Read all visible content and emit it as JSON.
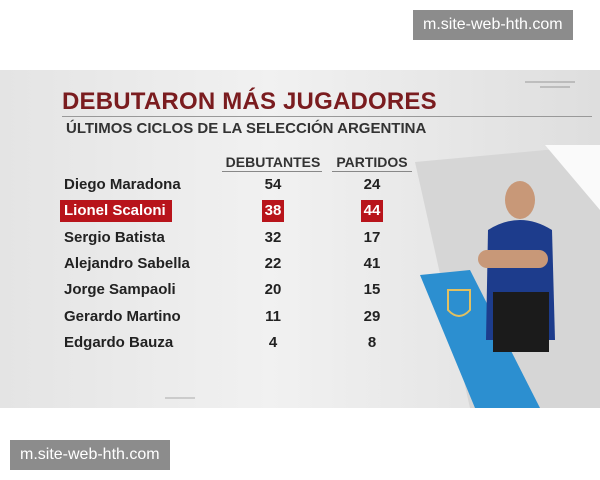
{
  "watermarks": [
    "m.site-web-hth.com",
    "m.site-web-hth.com"
  ],
  "header": {
    "title": "DEBUTARON MÁS JUGADORES",
    "subtitle": "ÚLTIMOS CICLOS DE LA SELECCIÓN ARGENTINA"
  },
  "table": {
    "columns": [
      "DEBUTANTES",
      "PARTIDOS"
    ],
    "rows": [
      [
        "Diego Maradona",
        54,
        24
      ],
      [
        "Lionel Scaloni",
        38,
        44
      ],
      [
        "Sergio Batista",
        32,
        17
      ],
      [
        "Alejandro Sabella",
        22,
        41
      ],
      [
        "Jorge Sampaoli",
        20,
        15
      ],
      [
        "Gerardo Martino",
        11,
        29
      ],
      [
        "Edgardo Bauza",
        4,
        8
      ]
    ]
  }
}
